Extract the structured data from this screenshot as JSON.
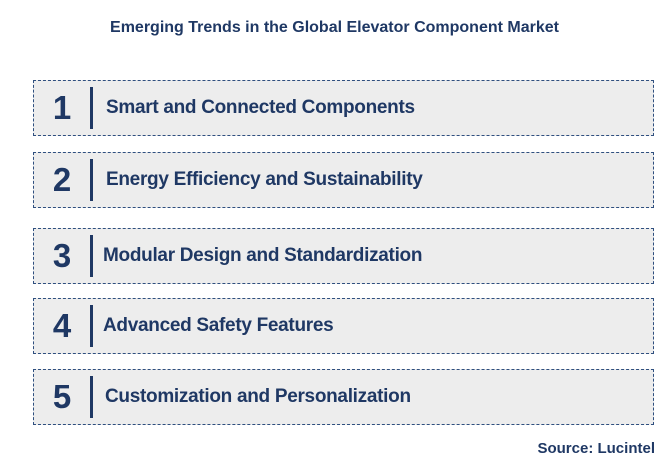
{
  "title": "Emerging Trends in the Global Elevator Component Market",
  "trends": [
    {
      "number": "1",
      "label": "Smart and Connected Components"
    },
    {
      "number": "2",
      "label": "Energy Efficiency and Sustainability"
    },
    {
      "number": "3",
      "label": "Modular Design and Standardization"
    },
    {
      "number": "4",
      "label": "Advanced Safety Features"
    },
    {
      "number": "5",
      "label": "Customization and Personalization"
    }
  ],
  "source": "Source: Lucintel",
  "colors": {
    "text": "#1f3864",
    "box_fill": "#ededed",
    "box_border": "#2f4f7f"
  }
}
